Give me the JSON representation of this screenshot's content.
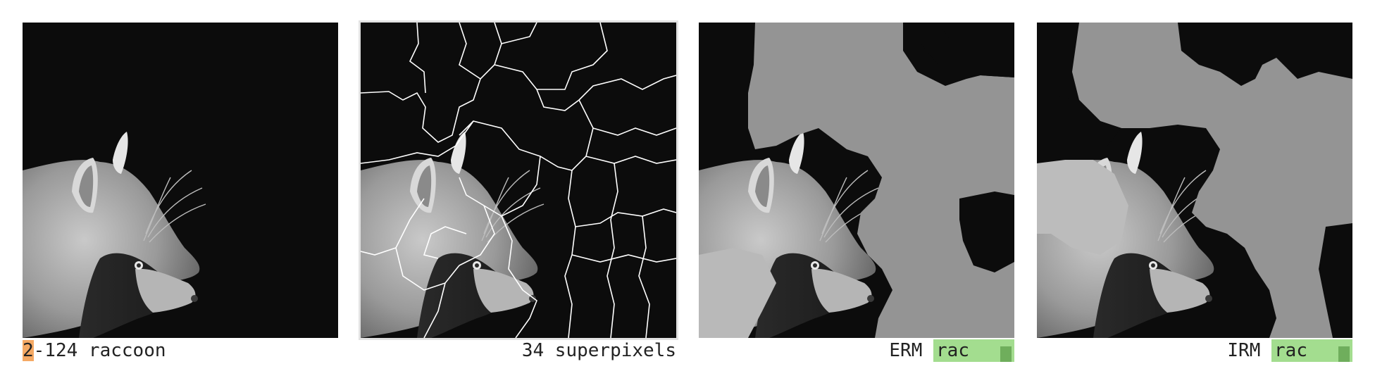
{
  "panels": [
    {
      "name": "original-image",
      "caption_hl": "2",
      "caption_rest": "-124 raccoon"
    },
    {
      "name": "superpixel-image",
      "caption": "34 superpixels"
    },
    {
      "name": "erm-mask-image",
      "method": "ERM",
      "prediction": "rac"
    },
    {
      "name": "irm-mask-image",
      "method": "IRM",
      "prediction": "rac"
    }
  ],
  "colors": {
    "highlight": "#f5a964",
    "badge": "#a3dd8f",
    "badge_mark": "#6fae5c",
    "mask_gray": "#949494",
    "boundary": "#ffffff"
  }
}
